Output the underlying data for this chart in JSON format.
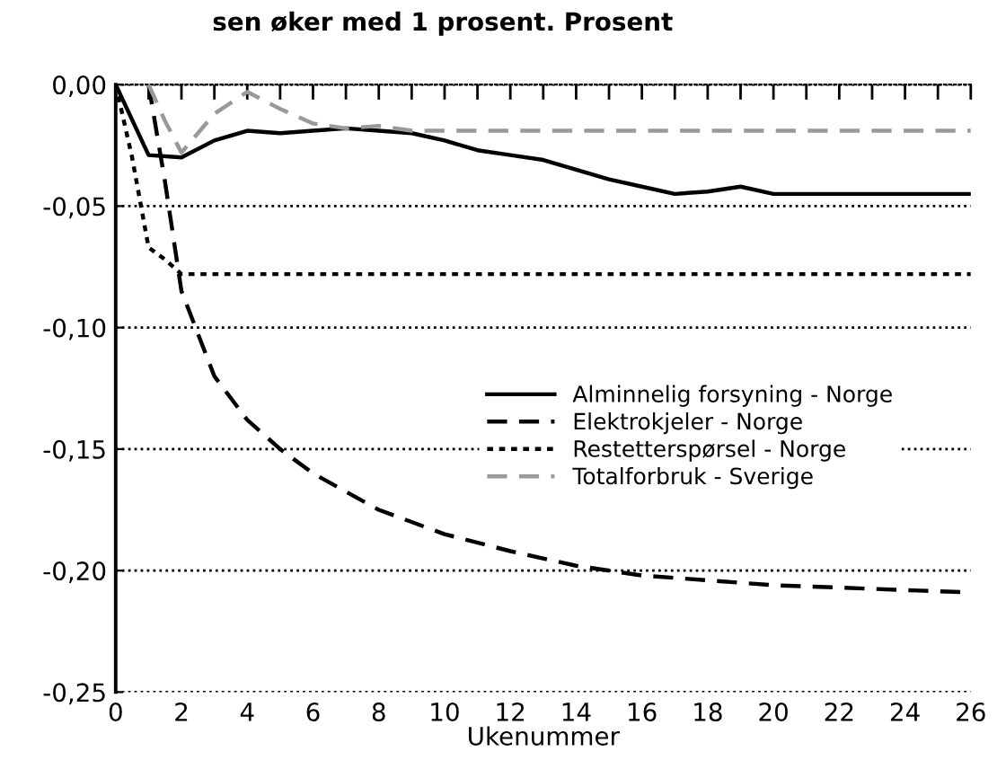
{
  "chart_data": {
    "type": "line",
    "title": "sen øker med 1 prosent. Prosent",
    "xlabel": "Ukenummer",
    "xlim": [
      0,
      26
    ],
    "ylim": [
      -0.25,
      0
    ],
    "xticks": [
      0,
      {
        "value": 1,
        "label": null
      },
      2,
      {
        "value": 3,
        "label": null
      },
      4,
      {
        "value": 5,
        "label": null
      },
      6,
      {
        "value": 7,
        "label": null
      },
      8,
      {
        "value": 9,
        "label": null
      },
      10,
      {
        "value": 11,
        "label": null
      },
      12,
      {
        "value": 13,
        "label": null
      },
      14,
      {
        "value": 15,
        "label": null
      },
      16,
      {
        "value": 17,
        "label": null
      },
      18,
      {
        "value": 19,
        "label": null
      },
      20,
      {
        "value": 21,
        "label": null
      },
      22,
      {
        "value": 23,
        "label": null
      },
      24,
      {
        "value": 25,
        "label": null
      },
      26
    ],
    "yticks": [
      {
        "value": 0,
        "label": "0,00"
      },
      {
        "value": -0.05,
        "label": "-0,05"
      },
      {
        "value": -0.1,
        "label": "-0,10"
      },
      {
        "value": -0.15,
        "label": "-0,15"
      },
      {
        "value": -0.2,
        "label": "-0,20"
      },
      {
        "value": -0.25,
        "label": "-0,25"
      }
    ],
    "grid": "y",
    "legend": "right",
    "marker": "none",
    "series": [
      {
        "name": "Alminnelig forsyning - Norge",
        "color": "#000000",
        "line_style": "solid",
        "x": [
          0,
          1,
          2,
          3,
          4,
          5,
          6,
          7,
          8,
          9,
          10,
          11,
          12,
          13,
          14,
          15,
          16,
          17,
          18,
          19,
          20,
          26
        ],
        "values": [
          0,
          -0.029,
          -0.03,
          -0.023,
          -0.019,
          -0.02,
          -0.019,
          -0.018,
          -0.019,
          -0.02,
          -0.023,
          -0.027,
          -0.029,
          -0.031,
          -0.035,
          -0.039,
          -0.042,
          -0.045,
          -0.044,
          -0.042,
          -0.045,
          -0.045
        ]
      },
      {
        "name": "Elektrokjeler - Norge",
        "color": "#000000",
        "line_style": "dashed",
        "x": [
          1,
          1.5,
          2,
          3,
          4,
          5,
          6,
          8,
          10,
          12,
          14,
          16,
          18,
          20,
          22,
          24,
          26
        ],
        "values": [
          0,
          -0.04,
          -0.085,
          -0.12,
          -0.138,
          -0.15,
          -0.16,
          -0.175,
          -0.185,
          -0.192,
          -0.198,
          -0.202,
          -0.204,
          -0.206,
          -0.207,
          -0.208,
          -0.209
        ]
      },
      {
        "name": "Restetterspørsel - Norge",
        "color": "#000000",
        "line_style": "dotted",
        "x": [
          0,
          0.5,
          1,
          1.5,
          2,
          26
        ],
        "values": [
          0,
          -0.03,
          -0.067,
          -0.072,
          -0.078,
          -0.078
        ]
      },
      {
        "name": "Totalforbruk - Sverige",
        "color": "#999999",
        "line_style": "dashed",
        "x": [
          1,
          1.5,
          2,
          3,
          4,
          5,
          6,
          7,
          8,
          9,
          26
        ],
        "values": [
          0,
          -0.015,
          -0.028,
          -0.012,
          -0.003,
          -0.01,
          -0.016,
          -0.018,
          -0.017,
          -0.019,
          -0.019
        ]
      }
    ]
  }
}
